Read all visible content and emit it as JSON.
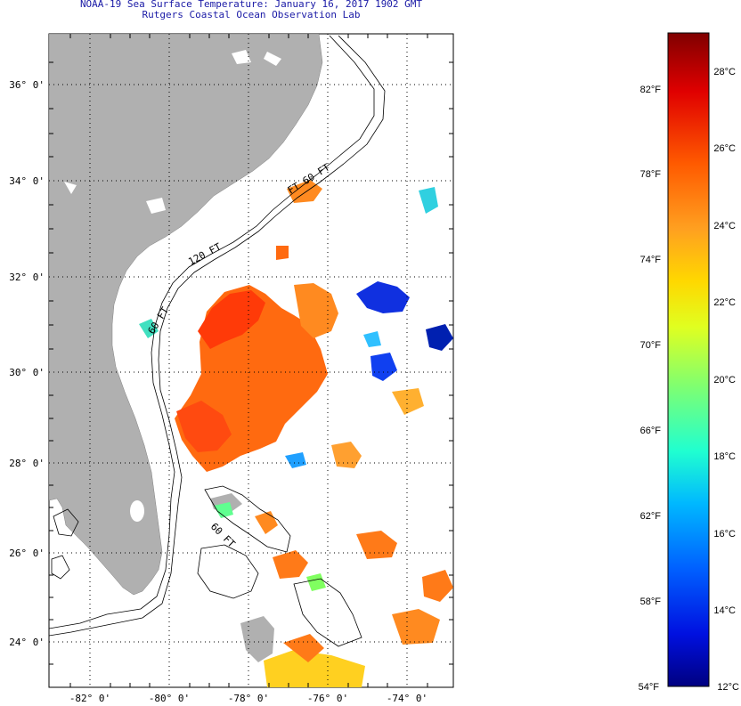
{
  "header": {
    "title": "NOAA-19 Sea Surface Temperature:  January 16, 2017 1902 GMT",
    "subtitle": "Rutgers Coastal Ocean Observation Lab"
  },
  "map": {
    "lat_labels": [
      "36° 0'",
      "34° 0'",
      "32° 0'",
      "30° 0'",
      "28° 0'",
      "26° 0'",
      "24° 0'"
    ],
    "lon_labels": [
      "-82° 0'",
      "-80° 0'",
      "-78° 0'",
      "-76° 0'",
      "-74° 0'"
    ],
    "isobath_labels": [
      "120 FT",
      "60 FT",
      "60 FT",
      "FT 60 FT"
    ],
    "land_color": "#b0b0b0"
  },
  "colorbar": {
    "f_labels": [
      "82°F",
      "78°F",
      "74°F",
      "70°F",
      "66°F",
      "62°F",
      "58°F",
      "54°F"
    ],
    "c_labels": [
      "28°C",
      "26°C",
      "24°C",
      "22°C",
      "20°C",
      "18°C",
      "16°C",
      "14°C",
      "12°C"
    ],
    "gradient_colors": [
      "#800000",
      "#e00000",
      "#ff5a00",
      "#ffa020",
      "#ffd800",
      "#e0ff20",
      "#80ff70",
      "#20ffd0",
      "#00b8ff",
      "#0060ff",
      "#0010e0",
      "#000080"
    ]
  }
}
